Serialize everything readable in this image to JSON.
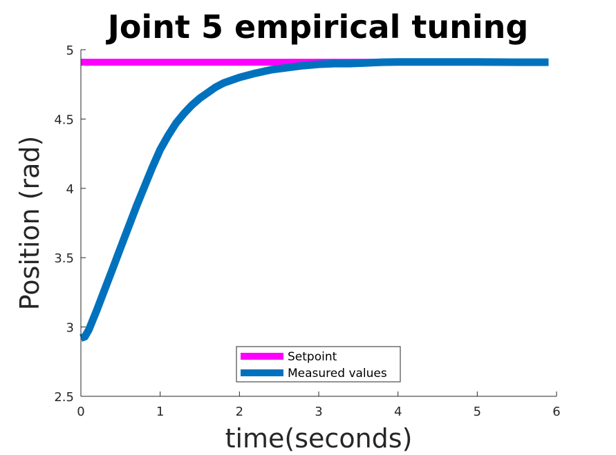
{
  "chart_data": {
    "type": "line",
    "title": "Joint 5 empirical tuning",
    "xlabel": "time(seconds)",
    "ylabel": "Position (rad)",
    "xlim": [
      0,
      6
    ],
    "ylim": [
      2.5,
      5
    ],
    "xticks": [
      0,
      1,
      2,
      3,
      4,
      5,
      6
    ],
    "yticks": [
      2.5,
      3,
      3.5,
      4,
      4.5,
      5
    ],
    "xtick_labels": [
      "0",
      "1",
      "2",
      "3",
      "4",
      "5",
      "6"
    ],
    "ytick_labels": [
      "2.5",
      "3",
      "3.5",
      "4",
      "4.5",
      "5"
    ],
    "grid": false,
    "legend_position": "bottom-center",
    "series": [
      {
        "name": "Setpoint",
        "color": "#ff00ff",
        "x": [
          0,
          5.9
        ],
        "y": [
          4.91,
          4.91
        ]
      },
      {
        "name": "Measured values",
        "color": "#0072bd",
        "x": [
          0,
          0.05,
          0.1,
          0.2,
          0.3,
          0.4,
          0.5,
          0.6,
          0.7,
          0.8,
          0.9,
          1.0,
          1.1,
          1.2,
          1.3,
          1.4,
          1.5,
          1.6,
          1.7,
          1.8,
          1.9,
          2.0,
          2.2,
          2.4,
          2.6,
          2.8,
          3.0,
          3.2,
          3.4,
          3.6,
          3.8,
          4.0,
          4.5,
          5.0,
          5.5,
          5.9
        ],
        "y": [
          2.92,
          2.93,
          2.98,
          3.12,
          3.27,
          3.42,
          3.57,
          3.72,
          3.87,
          4.01,
          4.15,
          4.28,
          4.38,
          4.47,
          4.54,
          4.6,
          4.65,
          4.69,
          4.73,
          4.76,
          4.78,
          4.8,
          4.83,
          4.855,
          4.87,
          4.885,
          4.895,
          4.9,
          4.9,
          4.905,
          4.91,
          4.912,
          4.912,
          4.912,
          4.91,
          4.91
        ]
      }
    ]
  }
}
